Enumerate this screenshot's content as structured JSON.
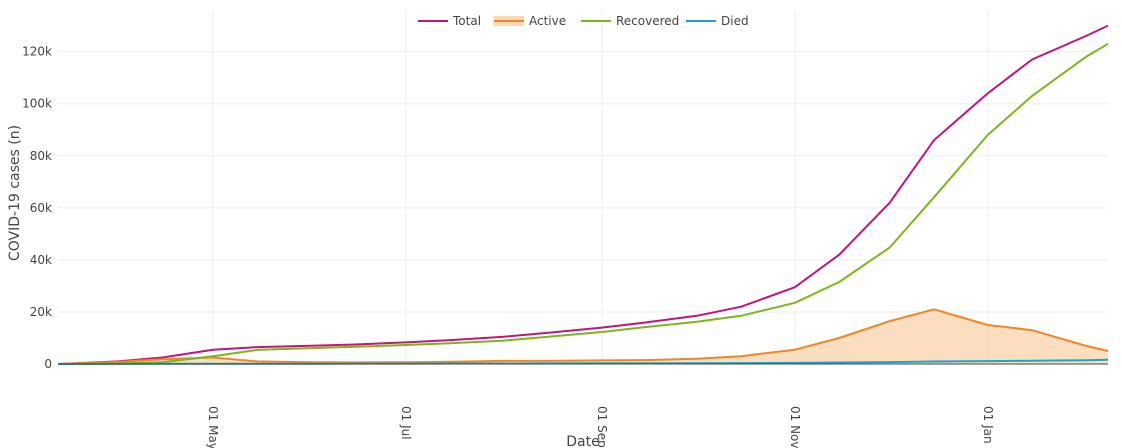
{
  "chart_data": {
    "type": "line",
    "title": "",
    "xlabel": "Date",
    "ylabel": "COVID-19 cases (n)",
    "x_range": [
      "2020-03-13",
      "2021-02-08"
    ],
    "ylim": [
      0,
      136000
    ],
    "x_ticks": [
      {
        "date": "2020-05-01",
        "label": "01 May"
      },
      {
        "date": "2020-07-01",
        "label": "01 Jul"
      },
      {
        "date": "2020-09-01",
        "label": "01 Sep"
      },
      {
        "date": "2020-11-01",
        "label": "01 Nov"
      },
      {
        "date": "2021-01-01",
        "label": "01 Jan"
      }
    ],
    "y_ticks": [
      {
        "value": 0,
        "label": "0"
      },
      {
        "value": 20000,
        "label": "20k"
      },
      {
        "value": 40000,
        "label": "40k"
      },
      {
        "value": 60000,
        "label": "60k"
      },
      {
        "value": 80000,
        "label": "80k"
      },
      {
        "value": 100000,
        "label": "100k"
      },
      {
        "value": 120000,
        "label": "120k"
      }
    ],
    "grid": true,
    "legend_position": "top-center",
    "x": [
      "2020-03-13",
      "2020-04-01",
      "2020-04-15",
      "2020-05-01",
      "2020-05-15",
      "2020-06-01",
      "2020-06-15",
      "2020-07-01",
      "2020-07-15",
      "2020-08-01",
      "2020-08-15",
      "2020-09-01",
      "2020-09-15",
      "2020-10-01",
      "2020-10-15",
      "2020-11-01",
      "2020-11-15",
      "2020-12-01",
      "2020-12-15",
      "2021-01-01",
      "2021-01-15",
      "2021-02-01",
      "2021-02-08"
    ],
    "series": [
      {
        "name": "Total",
        "color": "#c4147c",
        "fill": false,
        "values": [
          0,
          1000,
          2500,
          5500,
          6500,
          7000,
          7500,
          8300,
          9200,
          10500,
          12000,
          14000,
          16000,
          18500,
          22000,
          29500,
          42000,
          62000,
          86000,
          104000,
          117000,
          126000,
          130000
        ]
      },
      {
        "name": "Active",
        "color": "#f28526",
        "fill": true,
        "fill_color": "#fbd9b8",
        "values": [
          0,
          800,
          1800,
          2500,
          1000,
          700,
          600,
          700,
          900,
          1200,
          1200,
          1400,
          1500,
          2000,
          3000,
          5500,
          10000,
          16500,
          21000,
          15000,
          13000,
          7000,
          5000
        ]
      },
      {
        "name": "Recovered",
        "color": "#7bb61c",
        "fill": false,
        "values": [
          0,
          200,
          700,
          3000,
          5400,
          6100,
          6600,
          7300,
          8000,
          9000,
          10500,
          12300,
          14200,
          16200,
          18500,
          23500,
          31500,
          44800,
          64100,
          88000,
          103000,
          118000,
          123000
        ]
      },
      {
        "name": "Died",
        "color": "#1ea4c7",
        "fill": false,
        "values": [
          0,
          50,
          90,
          110,
          120,
          130,
          150,
          170,
          190,
          210,
          230,
          250,
          280,
          320,
          350,
          420,
          560,
          740,
          960,
          1100,
          1250,
          1450,
          1600
        ]
      }
    ]
  }
}
